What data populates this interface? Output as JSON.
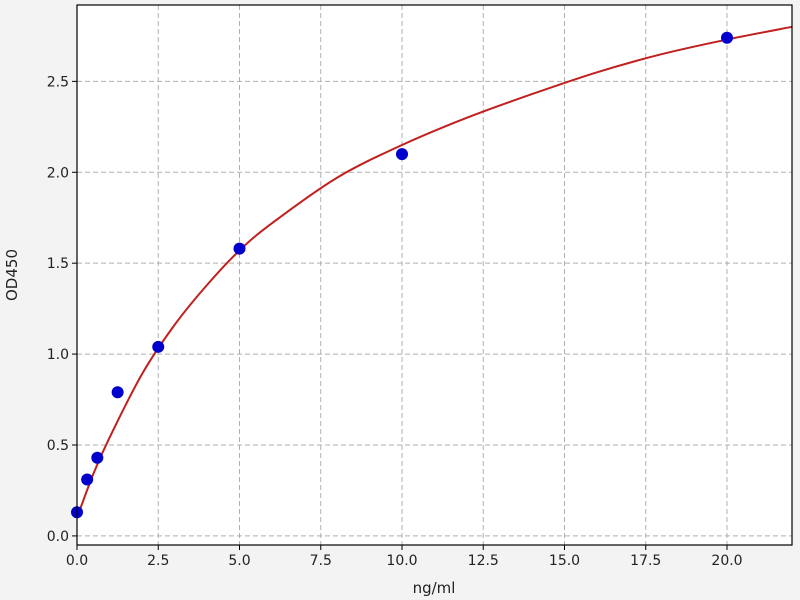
{
  "chart_data": {
    "type": "scatter",
    "title": "",
    "xlabel": "ng/ml",
    "ylabel": "OD450",
    "xlim": [
      0,
      22
    ],
    "ylim": [
      -0.05,
      2.92
    ],
    "grid": true,
    "x_ticks": [
      "0.0",
      "2.5",
      "5.0",
      "7.5",
      "10.0",
      "12.5",
      "15.0",
      "17.5",
      "20.0"
    ],
    "y_ticks": [
      "0.0",
      "0.5",
      "1.0",
      "1.5",
      "2.0",
      "2.5"
    ],
    "series": [
      {
        "kind": "points",
        "color": "#0000cc",
        "x": [
          0,
          0.3125,
          0.625,
          1.25,
          2.5,
          5,
          10,
          20
        ],
        "y": [
          0.13,
          0.31,
          0.43,
          0.79,
          1.04,
          1.58,
          2.1,
          2.74
        ]
      },
      {
        "kind": "fit-line",
        "color": "#c0201e",
        "x": [
          0,
          0.5,
          1,
          2,
          3,
          4,
          5,
          6,
          8,
          10,
          12,
          14,
          16,
          18,
          20,
          22
        ],
        "y": [
          0.1,
          0.34,
          0.54,
          0.89,
          1.16,
          1.38,
          1.57,
          1.72,
          1.97,
          2.15,
          2.3,
          2.43,
          2.55,
          2.65,
          2.73,
          2.8
        ]
      }
    ]
  }
}
